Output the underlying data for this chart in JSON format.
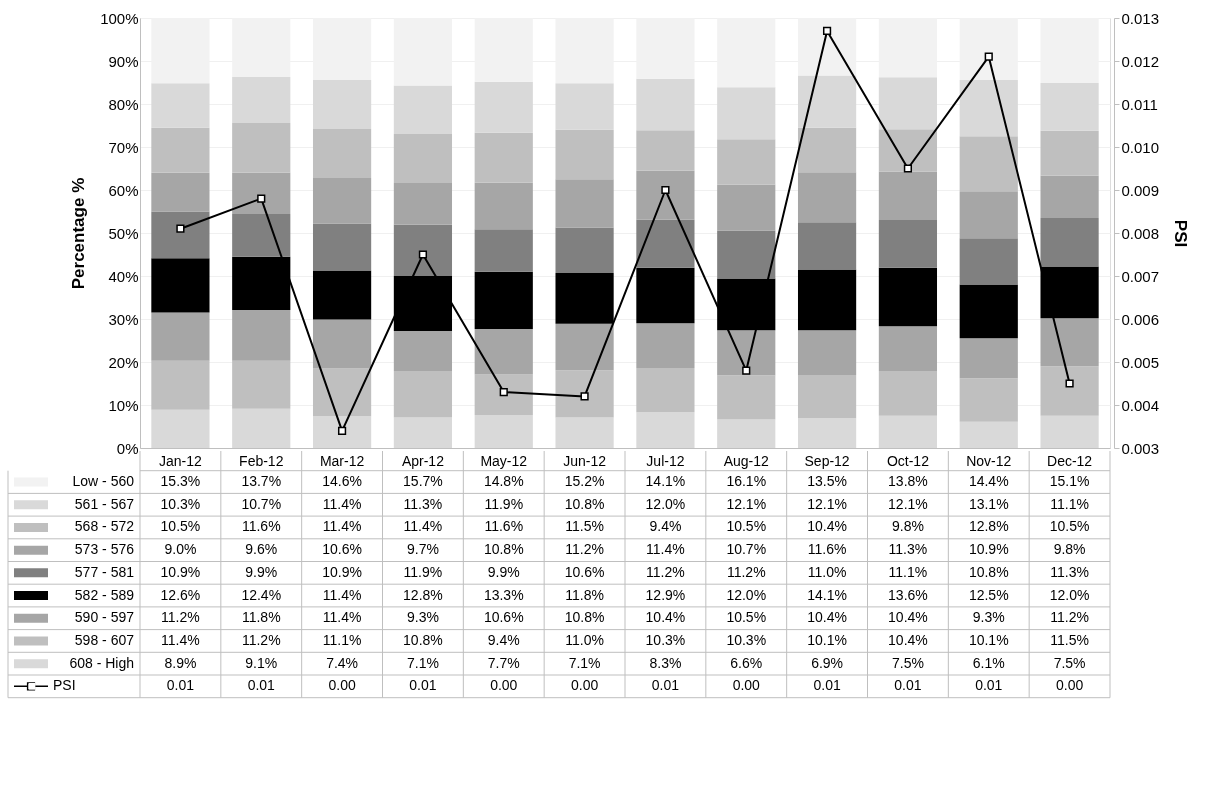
{
  "chart_data": {
    "type": "bar",
    "stacked": true,
    "ylabel": "Percentage %",
    "y2label": "PSI",
    "categories": [
      "Jan-12",
      "Feb-12",
      "Mar-12",
      "Apr-12",
      "May-12",
      "Jun-12",
      "Jul-12",
      "Aug-12",
      "Sep-12",
      "Oct-12",
      "Nov-12",
      "Dec-12"
    ],
    "ylim": [
      0,
      100
    ],
    "yticks": [
      {
        "value": 0,
        "label": "0%"
      },
      {
        "value": 10,
        "label": "10%"
      },
      {
        "value": 20,
        "label": "20%"
      },
      {
        "value": 30,
        "label": "30%"
      },
      {
        "value": 40,
        "label": "40%"
      },
      {
        "value": 50,
        "label": "50%"
      },
      {
        "value": 60,
        "label": "60%"
      },
      {
        "value": 70,
        "label": "70%"
      },
      {
        "value": 80,
        "label": "80%"
      },
      {
        "value": 90,
        "label": "90%"
      },
      {
        "value": 100,
        "label": "100%"
      }
    ],
    "y2lim": [
      0.003,
      0.013
    ],
    "y2ticks": [
      0.003,
      0.004,
      0.005,
      0.006,
      0.007,
      0.008,
      0.009,
      {
        "value": 0.01,
        "label": "0.010"
      },
      0.011,
      0.012,
      0.013
    ],
    "grid": "y",
    "legend": "bottom",
    "series": [
      {
        "name": "608 - High",
        "color": "#d9d9d9",
        "values": [
          8.9,
          9.1,
          7.4,
          7.1,
          7.7,
          7.1,
          8.3,
          6.6,
          6.9,
          7.5,
          6.1,
          7.5
        ],
        "value_labels": [
          "8.9%",
          "9.1%",
          "7.4%",
          "7.1%",
          "7.7%",
          "7.1%",
          "8.3%",
          "6.6%",
          "6.9%",
          "7.5%",
          "6.1%",
          "7.5%"
        ]
      },
      {
        "name": "598 - 607",
        "color": "#bfbfbf",
        "values": [
          11.4,
          11.2,
          11.1,
          10.8,
          9.4,
          11.0,
          10.3,
          10.3,
          10.1,
          10.4,
          10.1,
          11.5
        ],
        "value_labels": [
          "11.4%",
          "11.2%",
          "11.1%",
          "10.8%",
          "9.4%",
          "11.0%",
          "10.3%",
          "10.3%",
          "10.1%",
          "10.4%",
          "10.1%",
          "11.5%"
        ]
      },
      {
        "name": "590 - 597",
        "color": "#a6a6a6",
        "values": [
          11.2,
          11.8,
          11.4,
          9.3,
          10.6,
          10.8,
          10.4,
          10.5,
          10.4,
          10.4,
          9.3,
          11.2
        ],
        "value_labels": [
          "11.2%",
          "11.8%",
          "11.4%",
          "9.3%",
          "10.6%",
          "10.8%",
          "10.4%",
          "10.5%",
          "10.4%",
          "10.4%",
          "9.3%",
          "11.2%"
        ]
      },
      {
        "name": "582 - 589",
        "color": "#000000",
        "values": [
          12.6,
          12.4,
          11.4,
          12.8,
          13.3,
          11.8,
          12.9,
          12.0,
          14.1,
          13.6,
          12.5,
          12.0
        ],
        "value_labels": [
          "12.6%",
          "12.4%",
          "11.4%",
          "12.8%",
          "13.3%",
          "11.8%",
          "12.9%",
          "12.0%",
          "14.1%",
          "13.6%",
          "12.5%",
          "12.0%"
        ]
      },
      {
        "name": "577 - 581",
        "color": "#808080",
        "values": [
          10.9,
          9.9,
          10.9,
          11.9,
          9.9,
          10.6,
          11.2,
          11.2,
          11.0,
          11.1,
          10.8,
          11.3
        ],
        "value_labels": [
          "10.9%",
          "9.9%",
          "10.9%",
          "11.9%",
          "9.9%",
          "10.6%",
          "11.2%",
          "11.2%",
          "11.0%",
          "11.1%",
          "10.8%",
          "11.3%"
        ]
      },
      {
        "name": "573 - 576",
        "color": "#a6a6a6",
        "values": [
          9.0,
          9.6,
          10.6,
          9.7,
          10.8,
          11.2,
          11.4,
          10.7,
          11.6,
          11.3,
          10.9,
          9.8
        ],
        "value_labels": [
          "9.0%",
          "9.6%",
          "10.6%",
          "9.7%",
          "10.8%",
          "11.2%",
          "11.4%",
          "10.7%",
          "11.6%",
          "11.3%",
          "10.9%",
          "9.8%"
        ]
      },
      {
        "name": "568 - 572",
        "color": "#bfbfbf",
        "values": [
          10.5,
          11.6,
          11.4,
          11.4,
          11.6,
          11.5,
          9.4,
          10.5,
          10.4,
          9.8,
          12.8,
          10.5
        ],
        "value_labels": [
          "10.5%",
          "11.6%",
          "11.4%",
          "11.4%",
          "11.6%",
          "11.5%",
          "9.4%",
          "10.5%",
          "10.4%",
          "9.8%",
          "12.8%",
          "10.5%"
        ]
      },
      {
        "name": "561 - 567",
        "color": "#d9d9d9",
        "values": [
          10.3,
          10.7,
          11.4,
          11.3,
          11.9,
          10.8,
          12.0,
          12.1,
          12.1,
          12.1,
          13.1,
          11.1
        ],
        "value_labels": [
          "10.3%",
          "10.7%",
          "11.4%",
          "11.3%",
          "11.9%",
          "10.8%",
          "12.0%",
          "12.1%",
          "12.1%",
          "12.1%",
          "13.1%",
          "11.1%"
        ]
      },
      {
        "name": "Low - 560",
        "color": "#f2f2f2",
        "values": [
          15.3,
          13.7,
          14.6,
          15.7,
          14.8,
          15.2,
          14.1,
          16.1,
          13.5,
          13.8,
          14.4,
          15.1
        ],
        "value_labels": [
          "15.3%",
          "13.7%",
          "14.6%",
          "15.7%",
          "14.8%",
          "15.2%",
          "14.1%",
          "16.1%",
          "13.5%",
          "13.8%",
          "14.4%",
          "15.1%"
        ]
      },
      {
        "name": "PSI",
        "type": "line",
        "axis": "y2",
        "color": "#000000",
        "marker": "square",
        "line_style": "solid",
        "values": [
          0.0081,
          0.0088,
          0.0034,
          0.0075,
          0.0043,
          0.0042,
          0.009,
          0.0048,
          0.0127,
          0.0095,
          0.0121,
          0.0045
        ],
        "value_labels": [
          "0.01",
          "0.01",
          "0.00",
          "0.01",
          "0.00",
          "0.00",
          "0.01",
          "0.00",
          "0.01",
          "0.01",
          "0.01",
          "0.00"
        ]
      }
    ]
  }
}
